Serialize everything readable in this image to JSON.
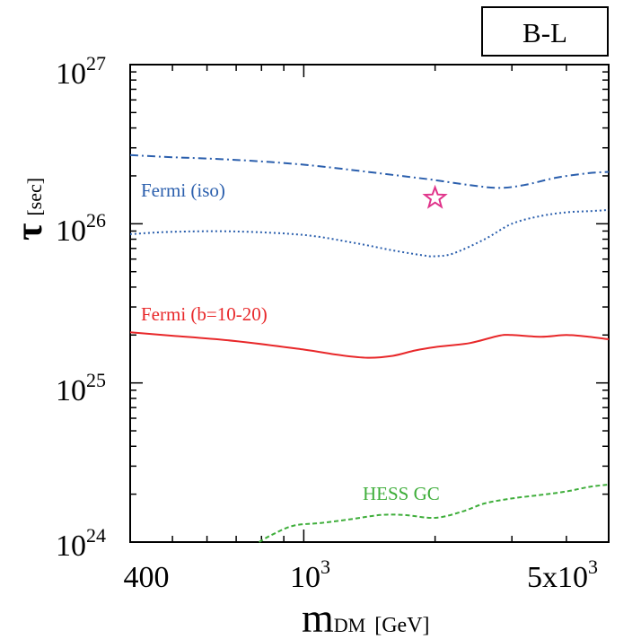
{
  "model_label": "B-L",
  "chart_data": {
    "type": "line",
    "title": "",
    "x_scale": "log",
    "y_scale": "log",
    "xlim": [
      400,
      5000
    ],
    "ylim": [
      1e+24,
      1e+27
    ],
    "x_ticks": [
      {
        "value": 400,
        "label": "400"
      },
      {
        "value": 1000,
        "base": "10",
        "exp": "3"
      },
      {
        "value": 5000,
        "base": "5x10",
        "exp": "3"
      }
    ],
    "y_ticks": [
      {
        "value": 1e+24,
        "base": "10",
        "exp": "24"
      },
      {
        "value": 1e+25,
        "base": "10",
        "exp": "25"
      },
      {
        "value": 1e+26,
        "base": "10",
        "exp": "26"
      },
      {
        "value": 1e+27,
        "base": "10",
        "exp": "27"
      }
    ],
    "xlabel": {
      "symbol": "m",
      "sub": "DM",
      "unit": "[GeV]"
    },
    "ylabel": {
      "symbol": "τ",
      "unit": "[sec]"
    },
    "grid": false,
    "series": [
      {
        "name": "",
        "color": "#2b5fad",
        "style": "dashdot",
        "x": [
          400,
          500,
          700,
          1000,
          1400,
          1800,
          2000,
          2400,
          2800,
          3200,
          3800,
          4500,
          5000
        ],
        "y": [
          2.7e+26,
          2.62e+26,
          2.52e+26,
          2.35e+26,
          2.12e+26,
          1.95e+26,
          1.88e+26,
          1.75e+26,
          1.68e+26,
          1.75e+26,
          1.95e+26,
          2.08e+26,
          2.12e+26
        ]
      },
      {
        "name": "Fermi (iso)",
        "color": "#2b5fad",
        "style": "dotted",
        "x": [
          400,
          500,
          700,
          1000,
          1300,
          1600,
          1900,
          2000,
          2200,
          2600,
          3000,
          3500,
          4000,
          4500,
          5000
        ],
        "y": [
          8.6e+25,
          8.9e+25,
          8.95e+25,
          8.5e+25,
          7.6e+25,
          6.8e+25,
          6.3e+25,
          6.25e+25,
          6.5e+25,
          8e+25,
          1e+26,
          1.12e+26,
          1.18e+26,
          1.2e+26,
          1.22e+26
        ]
      },
      {
        "name": "Fermi (b=10-20)",
        "color": "#e8282a",
        "style": "solid",
        "x": [
          400,
          500,
          700,
          1000,
          1200,
          1400,
          1600,
          1800,
          2000,
          2400,
          2800,
          3000,
          3500,
          4000,
          4500,
          5000
        ],
        "y": [
          2.08e+25,
          1.98e+25,
          1.83e+25,
          1.62e+25,
          1.5e+25,
          1.44e+25,
          1.48e+25,
          1.6e+25,
          1.68e+25,
          1.78e+25,
          1.98e+25,
          2e+25,
          1.95e+25,
          2e+25,
          1.95e+25,
          1.88e+25
        ]
      },
      {
        "name": "HESS GC",
        "color": "#3fae3b",
        "style": "dashed",
        "x": [
          790,
          850,
          950,
          1100,
          1300,
          1500,
          1700,
          2000,
          2300,
          2600,
          3000,
          3500,
          4000,
          4500,
          5000
        ],
        "y": [
          1e+24,
          1.12e+24,
          1.27e+24,
          1.32e+24,
          1.4e+24,
          1.48e+24,
          1.48e+24,
          1.42e+24,
          1.55e+24,
          1.75e+24,
          1.88e+24,
          1.98e+24,
          2.08e+24,
          2.22e+24,
          2.3e+24
        ]
      }
    ],
    "star_marker": {
      "x": 2000,
      "y": 1.45e+26,
      "color": "#e0338a"
    }
  }
}
